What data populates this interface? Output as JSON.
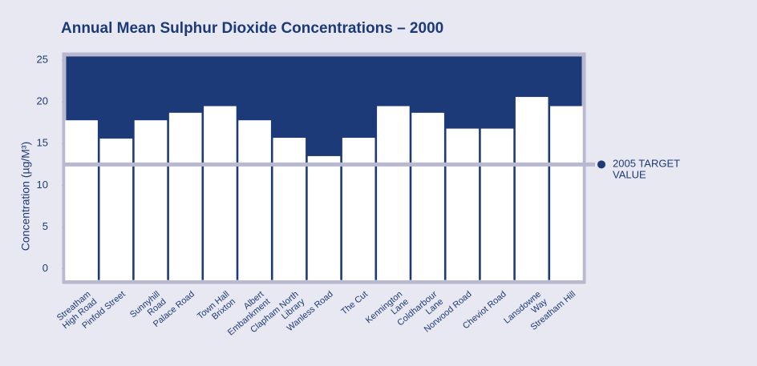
{
  "chart_data": {
    "type": "bar",
    "title": "Annual Mean Sulphur Dioxide Concentrations – 2000",
    "y_label": "Concentration (µg/M³)",
    "categories": [
      "Streatham\nHigh Road",
      "Pinfold Street",
      "Sunnyhill\nRoad",
      "Palace Road",
      "Town Hall\nBrixton",
      "Albert\nEmbankment",
      "Clapham North\nLibrary",
      "Wanless Road",
      "The Cut",
      "Kennington\nLane",
      "Coldharbour\nLane",
      "Norwood Road",
      "Cheviot Road",
      "Lansdowne\nWay",
      "Streatham Hill"
    ],
    "values": [
      17.8,
      15.6,
      17.8,
      18.7,
      19.5,
      17.8,
      15.7,
      13.5,
      15.7,
      19.5,
      18.7,
      16.8,
      16.8,
      20.6,
      19.5
    ],
    "color": "#ffffff",
    "background": "#1c3a78",
    "ylim": [
      -1.6,
      25.7
    ],
    "yticks": [
      0,
      5,
      10,
      15,
      20,
      25
    ],
    "target": 12.5,
    "target_label": "2005 TARGET\nVALUE",
    "target_color": "#b8b9cf"
  }
}
